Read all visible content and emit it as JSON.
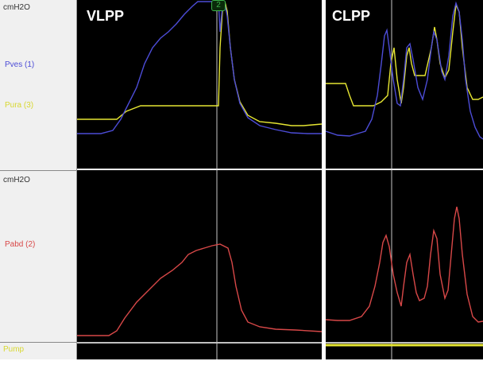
{
  "labels": {
    "top_unit": "cmH2O",
    "pves": "Pves (1)",
    "pura": "Pura (3)",
    "mid_unit": "cmH2O",
    "pabd": "Pabd (2)",
    "pump": "Pump"
  },
  "marker": {
    "text": "2"
  },
  "panels": {
    "vlpp": {
      "title": "VLPP"
    },
    "clpp": {
      "title": "CLPP"
    }
  },
  "colors": {
    "pves": "#4c4cd6",
    "pura": "#e6e632",
    "pabd": "#d84848",
    "pump": "#e6e632",
    "cursor": "#c8c8c8",
    "background": "#000000",
    "marker": "#3cb44b"
  }
}
